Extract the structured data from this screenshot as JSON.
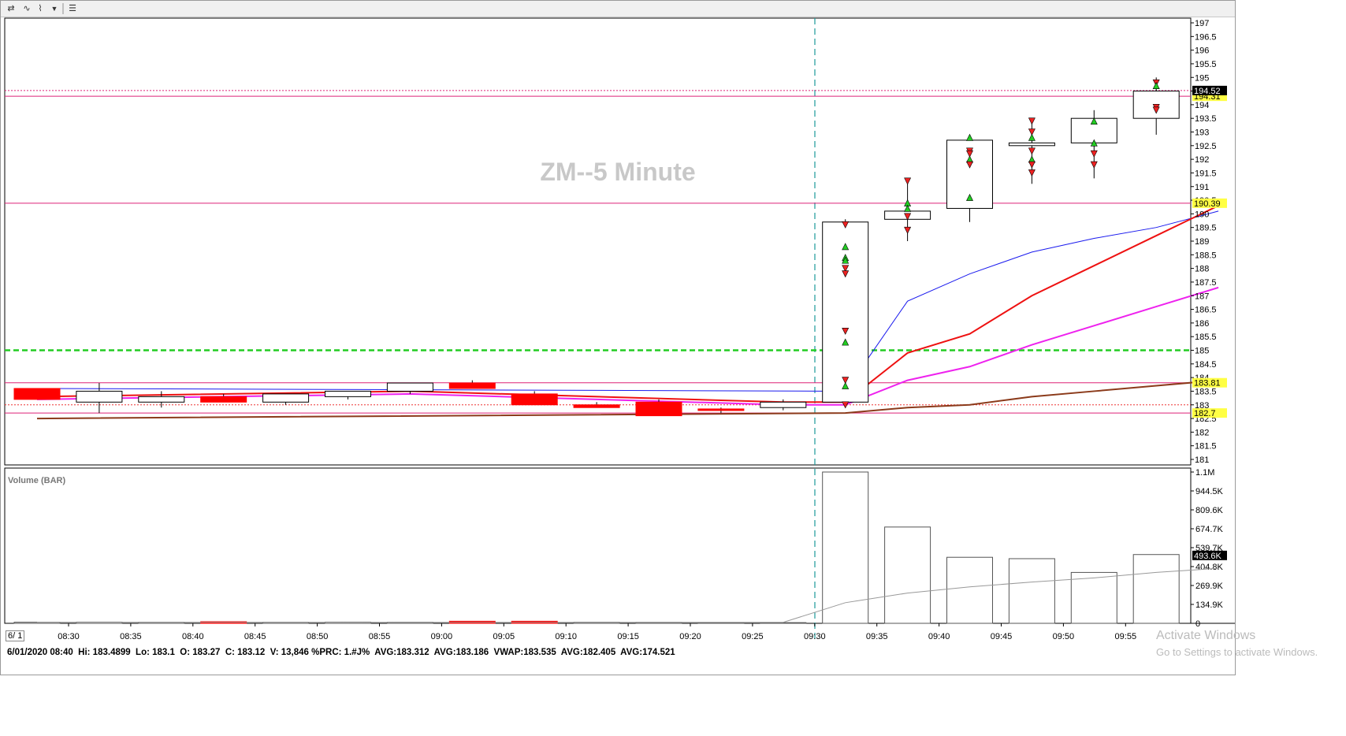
{
  "toolbar": {
    "icons": [
      "cursor-icon",
      "line-tools-icon",
      "dropdown-icon",
      "menu-icon"
    ]
  },
  "chart_data": {
    "type": "candlestick",
    "title": "ZM--5 Minute",
    "x_ticks": [
      "08:30",
      "08:35",
      "08:40",
      "08:45",
      "08:50",
      "08:55",
      "09:00",
      "09:05",
      "09:10",
      "09:15",
      "09:20",
      "09:25",
      "09:30",
      "09:35",
      "09:40",
      "09:45",
      "09:50",
      "09:55"
    ],
    "y_ticks": [
      "197",
      "196.5",
      "196",
      "195.5",
      "195",
      "194.5",
      "194",
      "193.5",
      "193",
      "192.5",
      "192",
      "191.5",
      "191",
      "190.5",
      "190",
      "189.5",
      "189",
      "188.5",
      "188",
      "187.5",
      "187",
      "186.5",
      "186",
      "185.5",
      "185",
      "184.5",
      "184",
      "183.5",
      "183",
      "182.5",
      "182",
      "181.5",
      "181"
    ],
    "ylim": [
      181,
      197
    ],
    "candles": [
      {
        "o": 183.6,
        "h": 183.6,
        "l": 183.2,
        "c": 183.2,
        "up": false
      },
      {
        "o": 183.1,
        "h": 183.8,
        "l": 182.7,
        "c": 183.5,
        "up": true
      },
      {
        "o": 183.1,
        "h": 183.5,
        "l": 182.9,
        "c": 183.3,
        "up": true
      },
      {
        "o": 183.3,
        "h": 183.4,
        "l": 183.1,
        "c": 183.1,
        "up": false
      },
      {
        "o": 183.1,
        "h": 183.4,
        "l": 183.0,
        "c": 183.4,
        "up": true
      },
      {
        "o": 183.3,
        "h": 183.5,
        "l": 183.2,
        "c": 183.5,
        "up": true
      },
      {
        "o": 183.5,
        "h": 183.8,
        "l": 183.4,
        "c": 183.8,
        "up": true
      },
      {
        "o": 183.8,
        "h": 183.9,
        "l": 183.6,
        "c": 183.6,
        "up": false
      },
      {
        "o": 183.4,
        "h": 183.5,
        "l": 183.0,
        "c": 183.0,
        "up": false
      },
      {
        "o": 183.0,
        "h": 183.1,
        "l": 182.9,
        "c": 182.9,
        "up": false
      },
      {
        "o": 183.1,
        "h": 183.2,
        "l": 182.6,
        "c": 182.6,
        "up": false
      },
      {
        "o": 182.85,
        "h": 182.9,
        "l": 182.7,
        "c": 182.8,
        "up": false
      },
      {
        "o": 182.9,
        "h": 183.2,
        "l": 182.8,
        "c": 183.1,
        "up": true
      },
      {
        "o": 183.1,
        "h": 189.8,
        "l": 182.9,
        "c": 189.7,
        "up": true
      },
      {
        "o": 189.8,
        "h": 191.3,
        "l": 189.0,
        "c": 190.1,
        "up": true
      },
      {
        "o": 190.2,
        "h": 192.9,
        "l": 189.7,
        "c": 192.7,
        "up": true
      },
      {
        "o": 192.5,
        "h": 193.5,
        "l": 191.1,
        "c": 192.6,
        "up": true
      },
      {
        "o": 192.6,
        "h": 193.8,
        "l": 191.3,
        "c": 193.5,
        "up": true
      },
      {
        "o": 193.5,
        "h": 195.0,
        "l": 192.9,
        "c": 194.5,
        "up": true
      }
    ],
    "lines": [
      {
        "name": "blue",
        "color": "#1a1aee",
        "points": [
          [
            0,
            183.6
          ],
          [
            13,
            183.5
          ],
          [
            14,
            186.8
          ],
          [
            15,
            187.8
          ],
          [
            16,
            188.6
          ],
          [
            17,
            189.1
          ],
          [
            18,
            189.5
          ],
          [
            19,
            190.1
          ]
        ]
      },
      {
        "name": "red",
        "color": "#ee1111",
        "points": [
          [
            0,
            183.3
          ],
          [
            6,
            183.5
          ],
          [
            12,
            183.1
          ],
          [
            13,
            183.1
          ],
          [
            14,
            184.9
          ],
          [
            15,
            185.6
          ],
          [
            16,
            187.0
          ],
          [
            17,
            188.1
          ],
          [
            18,
            189.2
          ],
          [
            19,
            190.3
          ]
        ]
      },
      {
        "name": "magenta",
        "color": "#ee22ee",
        "points": [
          [
            0,
            183.2
          ],
          [
            6,
            183.4
          ],
          [
            12,
            183.0
          ],
          [
            13,
            183.0
          ],
          [
            14,
            183.9
          ],
          [
            15,
            184.4
          ],
          [
            16,
            185.2
          ],
          [
            17,
            185.9
          ],
          [
            18,
            186.6
          ],
          [
            19,
            187.3
          ]
        ]
      },
      {
        "name": "brown",
        "color": "#8b3a1a",
        "points": [
          [
            0,
            182.5
          ],
          [
            13,
            182.7
          ],
          [
            14,
            182.9
          ],
          [
            15,
            183.0
          ],
          [
            16,
            183.3
          ],
          [
            17,
            183.5
          ],
          [
            18,
            183.7
          ],
          [
            19,
            183.9
          ]
        ]
      }
    ],
    "hlines": [
      {
        "value": 194.31,
        "color": "#dd2277",
        "label": "194.31",
        "style": "solid"
      },
      {
        "value": 194.52,
        "color": "#dd2277",
        "style": "dotted",
        "label": "194.52"
      },
      {
        "value": 190.39,
        "color": "#dd2277",
        "label": "190.39",
        "style": "solid"
      },
      {
        "value": 185.0,
        "color": "#22cc22",
        "style": "dashed"
      },
      {
        "value": 183.81,
        "color": "#dd2277",
        "label": "183.81",
        "style": "solid"
      },
      {
        "value": 183.0,
        "color": "#ee3333",
        "style": "dotted"
      },
      {
        "value": 182.7,
        "color": "#dd2277",
        "label": "182.7",
        "style": "solid"
      }
    ],
    "price_label": "194.52",
    "markers": [
      {
        "c": 13,
        "y": 189.6,
        "t": "down"
      },
      {
        "c": 13,
        "y": 188.8,
        "t": "up"
      },
      {
        "c": 13,
        "y": 188.4,
        "t": "up"
      },
      {
        "c": 13,
        "y": 188.3,
        "t": "up"
      },
      {
        "c": 13,
        "y": 188.0,
        "t": "down"
      },
      {
        "c": 13,
        "y": 187.8,
        "t": "down"
      },
      {
        "c": 13,
        "y": 185.7,
        "t": "down"
      },
      {
        "c": 13,
        "y": 185.3,
        "t": "up"
      },
      {
        "c": 13,
        "y": 183.9,
        "t": "down"
      },
      {
        "c": 13,
        "y": 183.7,
        "t": "up"
      },
      {
        "c": 13,
        "y": 183.0,
        "t": "down"
      },
      {
        "c": 14,
        "y": 191.2,
        "t": "down"
      },
      {
        "c": 14,
        "y": 190.4,
        "t": "up"
      },
      {
        "c": 14,
        "y": 190.2,
        "t": "up"
      },
      {
        "c": 14,
        "y": 189.9,
        "t": "down"
      },
      {
        "c": 14,
        "y": 189.4,
        "t": "down"
      },
      {
        "c": 15,
        "y": 192.8,
        "t": "up"
      },
      {
        "c": 15,
        "y": 192.3,
        "t": "down"
      },
      {
        "c": 15,
        "y": 192.2,
        "t": "down"
      },
      {
        "c": 15,
        "y": 192.0,
        "t": "up"
      },
      {
        "c": 15,
        "y": 191.8,
        "t": "down"
      },
      {
        "c": 15,
        "y": 190.6,
        "t": "up"
      },
      {
        "c": 16,
        "y": 193.4,
        "t": "down"
      },
      {
        "c": 16,
        "y": 193.0,
        "t": "down"
      },
      {
        "c": 16,
        "y": 192.8,
        "t": "up"
      },
      {
        "c": 16,
        "y": 192.3,
        "t": "down"
      },
      {
        "c": 16,
        "y": 192.0,
        "t": "up"
      },
      {
        "c": 16,
        "y": 191.8,
        "t": "down"
      },
      {
        "c": 16,
        "y": 191.5,
        "t": "down"
      },
      {
        "c": 17,
        "y": 193.4,
        "t": "up"
      },
      {
        "c": 17,
        "y": 192.6,
        "t": "up"
      },
      {
        "c": 17,
        "y": 192.2,
        "t": "down"
      },
      {
        "c": 17,
        "y": 191.8,
        "t": "down"
      },
      {
        "c": 18,
        "y": 194.8,
        "t": "down"
      },
      {
        "c": 18,
        "y": 194.7,
        "t": "up"
      },
      {
        "c": 18,
        "y": 193.9,
        "t": "down"
      },
      {
        "c": 18,
        "y": 193.8,
        "t": "down"
      }
    ],
    "volume": {
      "title": "Volume (BAR)",
      "y_ticks": [
        "1.1M",
        "944.5K",
        "809.6K",
        "674.7K",
        "539.7K",
        "404.8K",
        "269.9K",
        "134.9K",
        "0"
      ],
      "ylim": [
        0,
        1100000
      ],
      "values": [
        8000,
        9000,
        8000,
        12000,
        8000,
        9000,
        8000,
        15000,
        15000,
        8000,
        7000,
        6000,
        5000,
        1100000,
        700000,
        480000,
        470000,
        370000,
        500000
      ],
      "avg": [
        [
          0,
          8000
        ],
        [
          12,
          7000
        ],
        [
          13,
          150000
        ],
        [
          14,
          220000
        ],
        [
          15,
          265000
        ],
        [
          16,
          300000
        ],
        [
          17,
          330000
        ],
        [
          18,
          370000
        ],
        [
          19,
          400000
        ]
      ],
      "price_label": "493.6K"
    }
  },
  "status": {
    "text": "6/01/2020 08:40  Hi: 183.4899  Lo: 183.1  O: 183.27  C: 183.12  V: 13,846 %PRC: 1.#J%  AVG:183.312  AVG:183.186  VWAP:183.535  AVG:182.405  AVG:174.521",
    "date_box": "6/ 1"
  },
  "watermark": {
    "line1": "Activate Windows",
    "line2": "Go to Settings to activate Windows."
  }
}
